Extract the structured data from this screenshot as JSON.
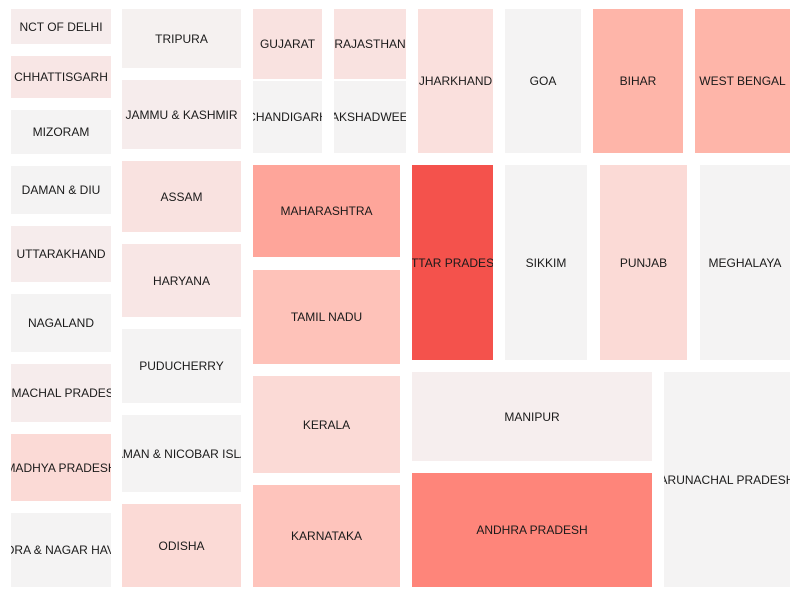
{
  "chart_data": {
    "type": "treemap",
    "title": "",
    "color_scale": {
      "low": "#f4f3f3",
      "high": "#f4524c"
    },
    "tiles": [
      {
        "label": "NCT OF DELHI",
        "color": "#f6ecec"
      },
      {
        "label": "CHHATTISGARH",
        "color": "#f8e6e5"
      },
      {
        "label": "MIZORAM",
        "color": "#f4f3f3"
      },
      {
        "label": "DAMAN & DIU",
        "color": "#f4f3f3"
      },
      {
        "label": "UTTARAKHAND",
        "color": "#f6ecec"
      },
      {
        "label": "NAGALAND",
        "color": "#f4f3f3"
      },
      {
        "label": "HIMACHAL PRADESH",
        "color": "#f6ecec"
      },
      {
        "label": "MADHYA PRADESH",
        "color": "#fbdad6"
      },
      {
        "label": "DADRA & NAGAR HAVELI",
        "color": "#f4f3f3"
      },
      {
        "label": "TRIPURA",
        "color": "#f5f1f0"
      },
      {
        "label": "JAMMU & KASHMIR",
        "color": "#f6ecec"
      },
      {
        "label": "ASSAM",
        "color": "#f9e2e0"
      },
      {
        "label": "HARYANA",
        "color": "#f8e6e5"
      },
      {
        "label": "PUDUCHERRY",
        "color": "#f4f3f3"
      },
      {
        "label": "ANDAMAN & NICOBAR ISLANDS",
        "color": "#f4f3f3"
      },
      {
        "label": "ODISHA",
        "color": "#fbdad6"
      },
      {
        "label": "GUJARAT",
        "color": "#f9e2e0"
      },
      {
        "label": "RAJASTHAN",
        "color": "#f9e2e0"
      },
      {
        "label": "CHANDIGARH",
        "color": "#f4f3f3"
      },
      {
        "label": "LAKSHADWEEP",
        "color": "#f4f3f3"
      },
      {
        "label": "JHARKHAND",
        "color": "#fae0dd"
      },
      {
        "label": "GOA",
        "color": "#f4f3f3"
      },
      {
        "label": "BIHAR",
        "color": "#feb5a9"
      },
      {
        "label": "WEST BENGAL",
        "color": "#feb5a9"
      },
      {
        "label": "MAHARASHTRA",
        "color": "#fea59a"
      },
      {
        "label": "TAMIL NADU",
        "color": "#fec2b9"
      },
      {
        "label": "KERALA",
        "color": "#fbdad6"
      },
      {
        "label": "KARNATAKA",
        "color": "#fec4bc"
      },
      {
        "label": "UTTAR PRADESH",
        "color": "#f4524c"
      },
      {
        "label": "SIKKIM",
        "color": "#f4f3f3"
      },
      {
        "label": "PUNJAB",
        "color": "#fbdad6"
      },
      {
        "label": "MEGHALAYA",
        "color": "#f4f3f3"
      },
      {
        "label": "MANIPUR",
        "color": "#f6eeee"
      },
      {
        "label": "ANDHRA PRADESH",
        "color": "#fe857a"
      },
      {
        "label": "ARUNACHAL PRADESH",
        "color": "#f4f3f3"
      }
    ]
  }
}
